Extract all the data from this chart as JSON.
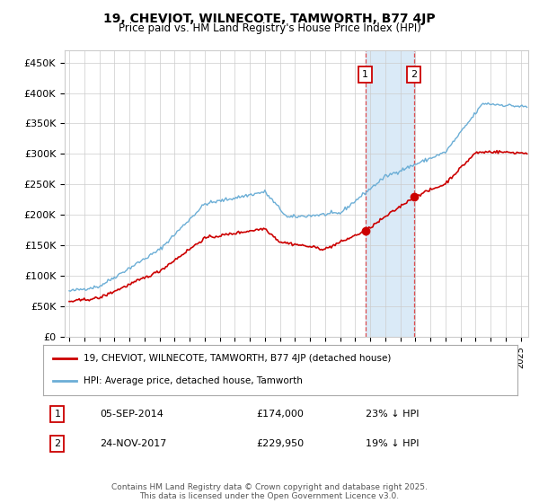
{
  "title": "19, CHEVIOT, WILNECOTE, TAMWORTH, B77 4JP",
  "subtitle": "Price paid vs. HM Land Registry's House Price Index (HPI)",
  "ylabel_values": [
    "£0",
    "£50K",
    "£100K",
    "£150K",
    "£200K",
    "£250K",
    "£300K",
    "£350K",
    "£400K",
    "£450K"
  ],
  "yticks": [
    0,
    50000,
    100000,
    150000,
    200000,
    250000,
    300000,
    350000,
    400000,
    450000
  ],
  "ylim": [
    0,
    470000
  ],
  "xlim_start": 1994.7,
  "xlim_end": 2025.5,
  "hpi_color": "#6baed6",
  "price_color": "#cc0000",
  "sale1_date": "05-SEP-2014",
  "sale1_price": 174000,
  "sale1_pct": "23%",
  "sale1_year": 2014.68,
  "sale2_date": "24-NOV-2017",
  "sale2_price": 229950,
  "sale2_pct": "19%",
  "sale2_year": 2017.9,
  "legend_label1": "19, CHEVIOT, WILNECOTE, TAMWORTH, B77 4JP (detached house)",
  "legend_label2": "HPI: Average price, detached house, Tamworth",
  "footer": "Contains HM Land Registry data © Crown copyright and database right 2025.\nThis data is licensed under the Open Government Licence v3.0.",
  "background_color": "#ffffff",
  "grid_color": "#cccccc",
  "shaded_region_color": "#daeaf7"
}
